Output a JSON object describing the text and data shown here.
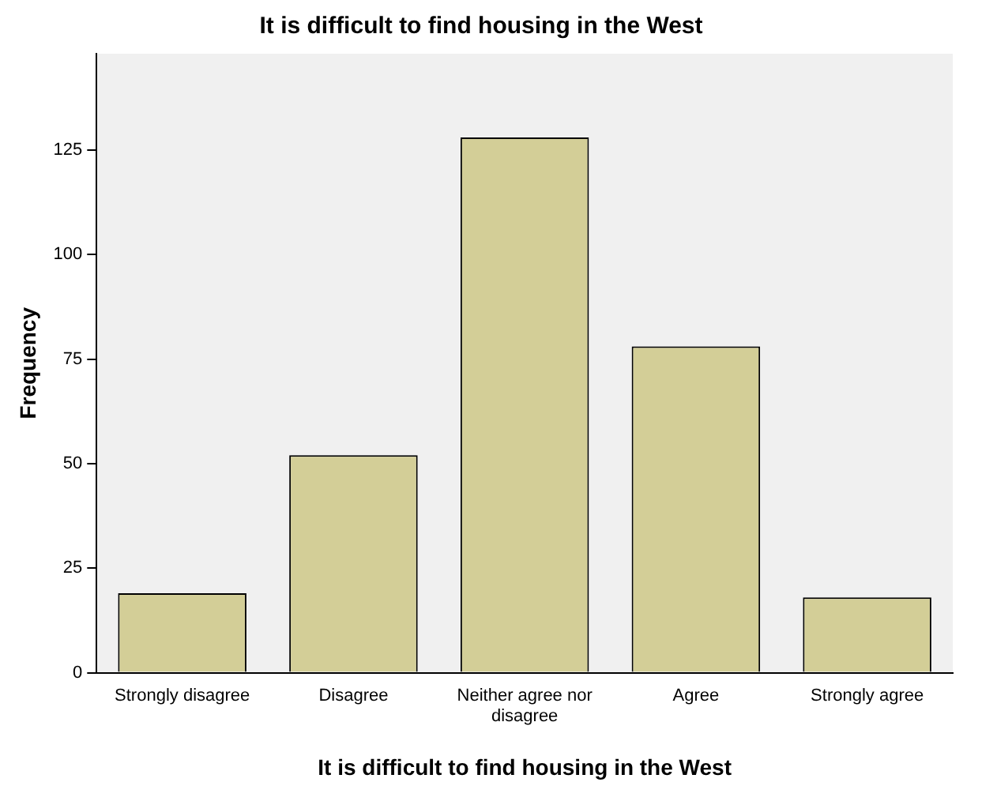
{
  "chart_data": {
    "type": "bar",
    "title": "It is difficult to find housing in the West",
    "xlabel": "It is difficult to find housing in the West",
    "ylabel": "Frequency",
    "categories": [
      "Strongly disagree",
      "Disagree",
      "Neither agree nor disagree",
      "Agree",
      "Strongly agree"
    ],
    "values": [
      19,
      52,
      128,
      78,
      18
    ],
    "color": "#d3ce97",
    "ylim": [
      0,
      148
    ],
    "yticks": [
      0,
      25,
      50,
      75,
      100,
      125
    ],
    "grid": false,
    "legend": false
  }
}
